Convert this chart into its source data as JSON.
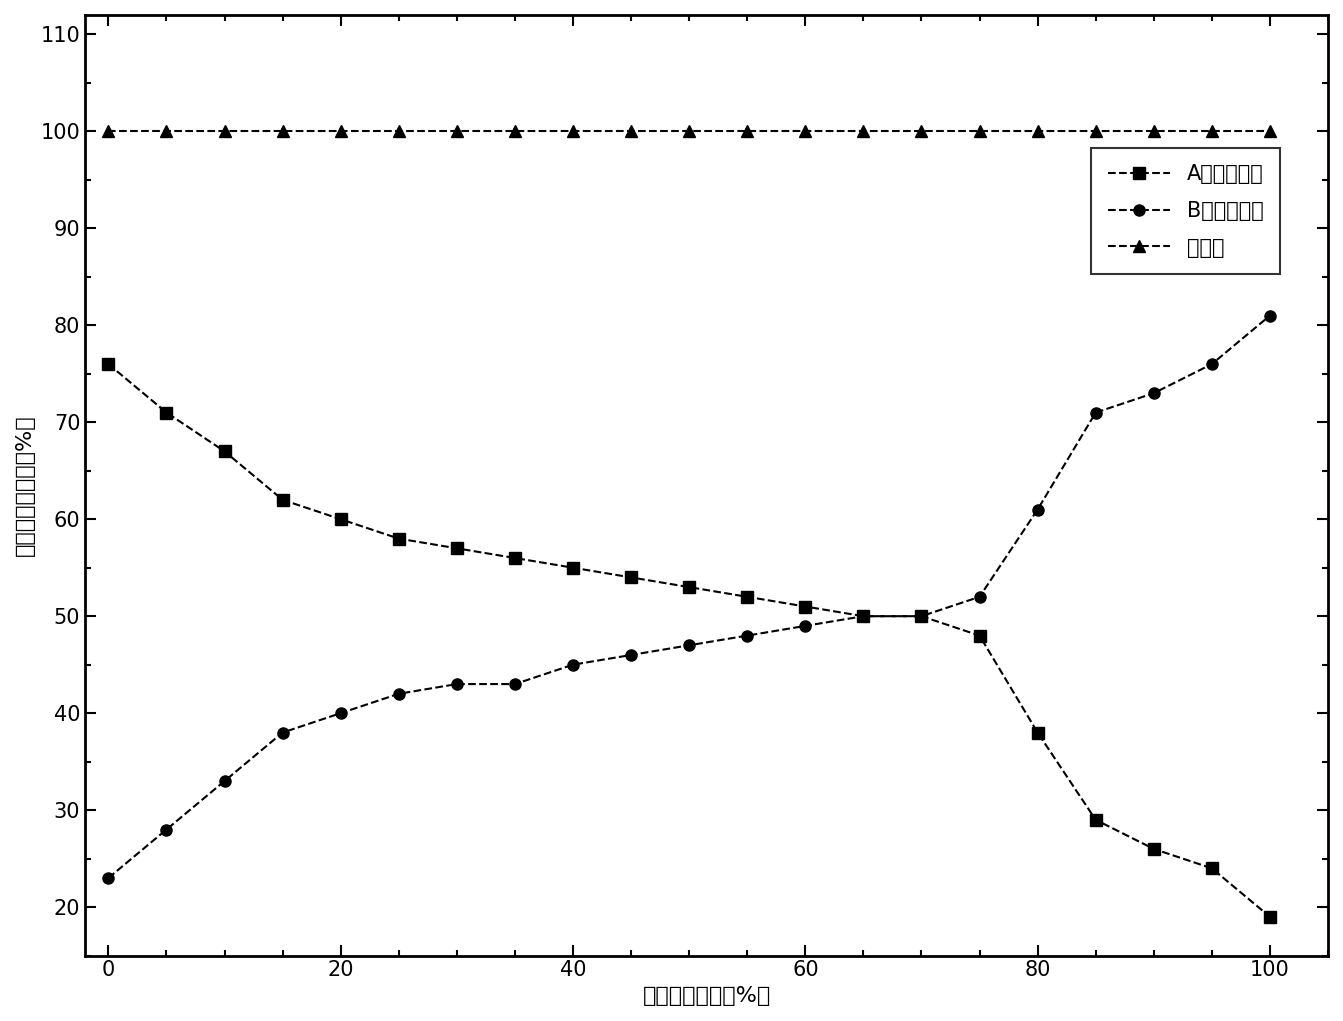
{
  "series_A": {
    "x": [
      0,
      5,
      10,
      15,
      20,
      25,
      30,
      35,
      40,
      45,
      50,
      55,
      60,
      65,
      70,
      75,
      80,
      85,
      90,
      95,
      100
    ],
    "y": [
      76,
      71,
      67,
      62,
      60,
      58,
      57,
      56,
      55,
      54,
      53,
      52,
      51,
      50,
      50,
      48,
      38,
      29,
      26,
      24,
      19
    ],
    "label": "A电池的电流",
    "color": "#000000",
    "marker": "s",
    "linestyle": "--"
  },
  "series_B": {
    "x": [
      0,
      5,
      10,
      15,
      20,
      25,
      30,
      35,
      40,
      45,
      50,
      55,
      60,
      65,
      70,
      75,
      80,
      85,
      90,
      95,
      100
    ],
    "y": [
      23,
      28,
      33,
      38,
      40,
      42,
      43,
      43,
      45,
      46,
      47,
      48,
      49,
      50,
      50,
      52,
      61,
      71,
      73,
      76,
      81
    ],
    "label": "B电池的电流",
    "color": "#000000",
    "marker": "o",
    "linestyle": "--"
  },
  "series_total": {
    "x": [
      0,
      5,
      10,
      15,
      20,
      25,
      30,
      35,
      40,
      45,
      50,
      55,
      60,
      65,
      70,
      75,
      80,
      85,
      90,
      95,
      100
    ],
    "y": [
      100,
      100,
      100,
      100,
      100,
      100,
      100,
      100,
      100,
      100,
      100,
      100,
      100,
      100,
      100,
      100,
      100,
      100,
      100,
      100,
      100
    ],
    "label": "总电流",
    "color": "#000000",
    "marker": "^",
    "linestyle": "--"
  },
  "xlabel": "放电时间进度（%）",
  "ylabel": "放电电流百分比（%）",
  "xlim": [
    -2,
    105
  ],
  "ylim": [
    15,
    112
  ],
  "xticks": [
    0,
    20,
    40,
    60,
    80,
    100
  ],
  "yticks": [
    20,
    30,
    40,
    50,
    60,
    70,
    80,
    90,
    100,
    110
  ],
  "background_color": "#ffffff",
  "marker_size": 8,
  "linewidth": 1.5,
  "label_fontsize": 16,
  "tick_fontsize": 15,
  "legend_fontsize": 15
}
